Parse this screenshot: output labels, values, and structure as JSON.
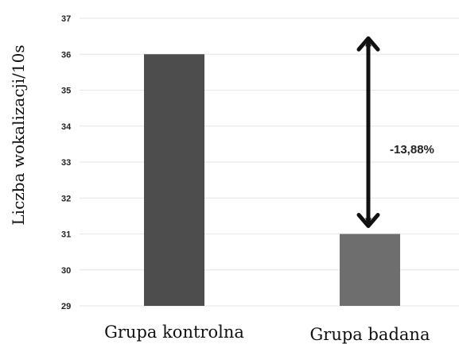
{
  "chart_data": {
    "type": "bar",
    "categories": [
      "Grupa kontrolna",
      "Grupa badana"
    ],
    "values": [
      36,
      31
    ],
    "bar_colors": [
      "#4d4d4d",
      "#6e6e6e"
    ],
    "ylabel": "Liczba wokalizacji/10s",
    "xlabel": "",
    "ylim": [
      29,
      37
    ],
    "yticks": [
      "29",
      "30",
      "31",
      "32",
      "33",
      "34",
      "35",
      "36",
      "37"
    ],
    "grid": true,
    "annotation": {
      "label": "-13,88%",
      "from": 36,
      "to": 31,
      "type": "double-arrow"
    }
  }
}
